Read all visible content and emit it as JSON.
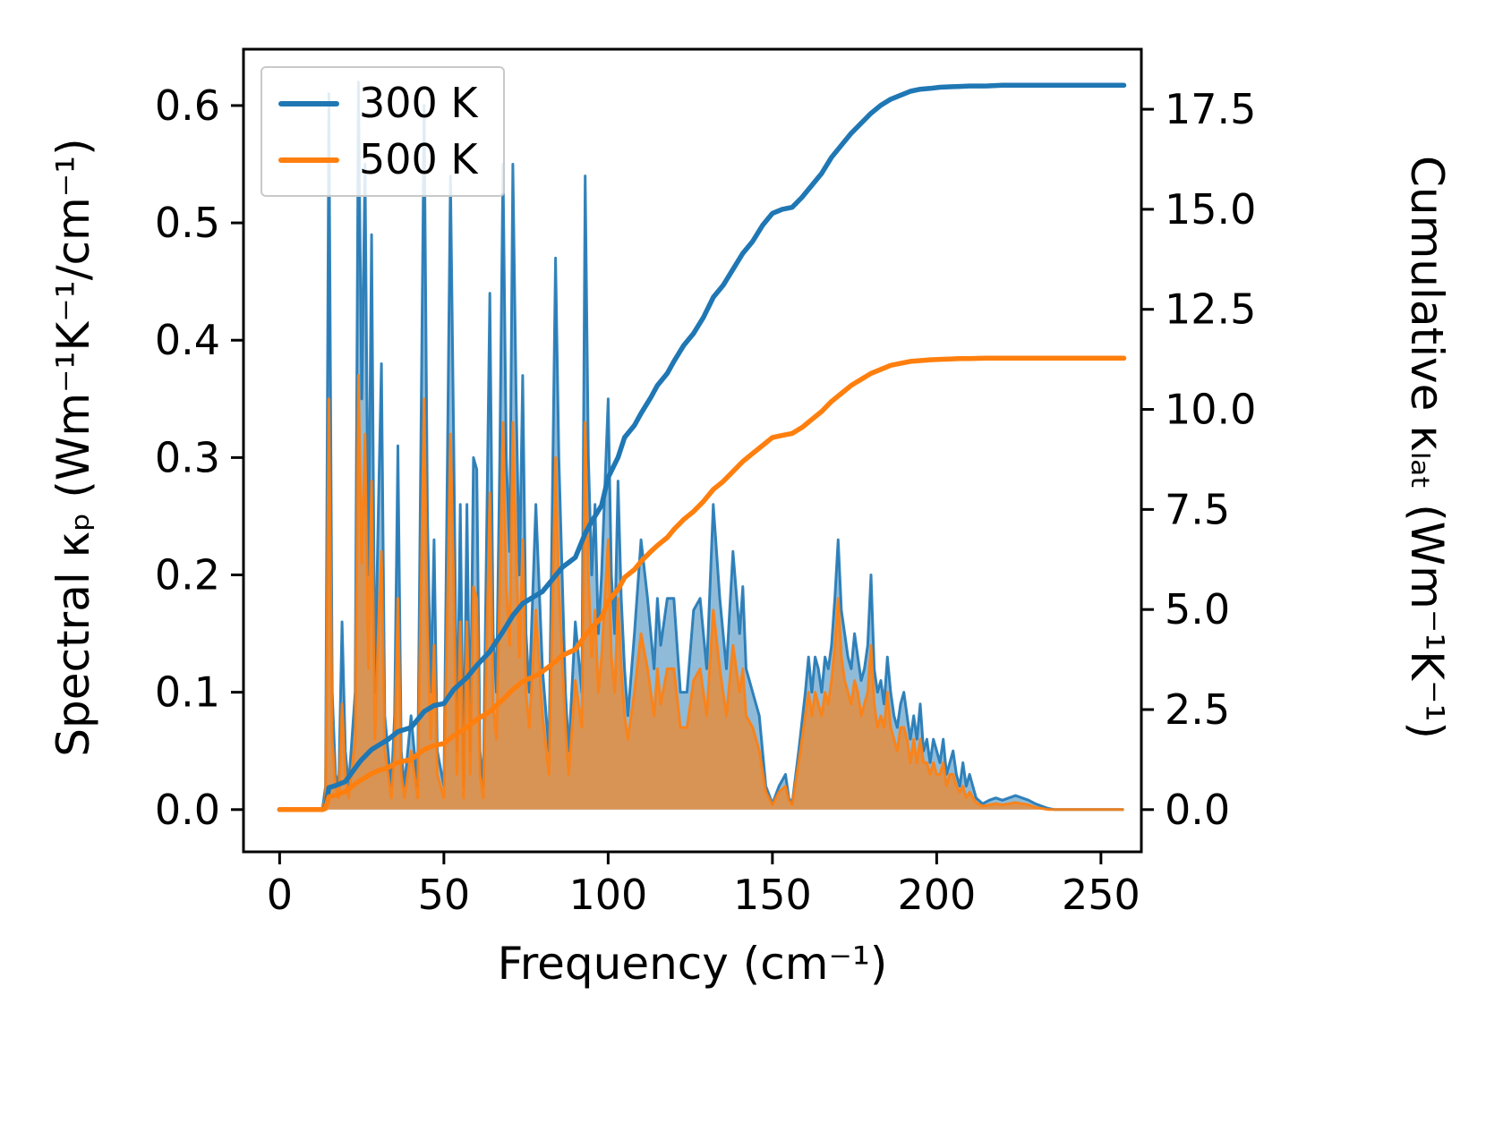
{
  "figure": {
    "background": "#ffffff"
  },
  "legend": {
    "items": [
      {
        "label": "300 K",
        "color": "#1f77b4"
      },
      {
        "label": "500 K",
        "color": "#ff7f0e"
      }
    ]
  },
  "chart_data": {
    "type": "line",
    "title": "",
    "xlabel": "Frequency (cm⁻¹)",
    "ylabel_left": "Spectral κₚ (Wm⁻¹K⁻¹/cm⁻¹)",
    "ylabel_right": "Cumulative κₗₐₜ (Wm⁻¹K⁻¹)",
    "grid": false,
    "legend_position": "upper-left",
    "xlim": [
      -11,
      262.3
    ],
    "ylim_left": [
      -0.036,
      0.648
    ],
    "ylim_right": [
      -1.055,
      19.0
    ],
    "xticks": [
      0,
      50,
      100,
      150,
      200,
      250
    ],
    "xtick_labels": [
      "0",
      "50",
      "100",
      "150",
      "200",
      "250"
    ],
    "yticks_left": [
      0.0,
      0.1,
      0.2,
      0.3,
      0.4,
      0.5,
      0.6
    ],
    "ytick_left_labels": [
      "0.0",
      "0.1",
      "0.2",
      "0.3",
      "0.4",
      "0.5",
      "0.6"
    ],
    "yticks_right": [
      0.0,
      2.5,
      5.0,
      7.5,
      10.0,
      12.5,
      15.0,
      17.5
    ],
    "ytick_right_labels": [
      "0.0",
      "2.5",
      "5.0",
      "7.5",
      "10.0",
      "12.5",
      "15.0",
      "17.5"
    ],
    "spectral": {
      "x": [
        0,
        5,
        10,
        13,
        14,
        15,
        16,
        17,
        18,
        19,
        20,
        21,
        23,
        24,
        25,
        26,
        27,
        28,
        29,
        30,
        31,
        32,
        33,
        34,
        35,
        36,
        37,
        38,
        40,
        42,
        44,
        45,
        46,
        47,
        48,
        50,
        52,
        53,
        54,
        55,
        56,
        57,
        58,
        59,
        60,
        61,
        62,
        64,
        65,
        66,
        67,
        68,
        69,
        70,
        71,
        72,
        73,
        74,
        75,
        76,
        78,
        80,
        82,
        84,
        85,
        86,
        87,
        88,
        90,
        92,
        93,
        94,
        95,
        96,
        97,
        98,
        100,
        101,
        102,
        103,
        104,
        105,
        106,
        108,
        110,
        112,
        114,
        115,
        116,
        118,
        120,
        122,
        124,
        126,
        128,
        130,
        132,
        134,
        136,
        138,
        140,
        141,
        142,
        144,
        146,
        148,
        150,
        152,
        154,
        155,
        156,
        158,
        160,
        161,
        162,
        163,
        164,
        165,
        166,
        167,
        168,
        169,
        170,
        171,
        172,
        173,
        174,
        175,
        176,
        177,
        178,
        179,
        180,
        181,
        182,
        183,
        184,
        185,
        186,
        187,
        188,
        189,
        190,
        191,
        192,
        193,
        194,
        195,
        196,
        197,
        198,
        199,
        200,
        201,
        202,
        203,
        204,
        205,
        206,
        207,
        208,
        209,
        210,
        212,
        214,
        216,
        218,
        220,
        222,
        224,
        226,
        228,
        230,
        232,
        234,
        236,
        240,
        250,
        257
      ],
      "series": [
        {
          "name": "300 K",
          "color": "#1f77b4",
          "fill_opacity": 0.5,
          "values": [
            0,
            0,
            0,
            0,
            0.02,
            0.61,
            0.1,
            0.03,
            0.02,
            0.16,
            0.05,
            0.02,
            0.1,
            0.62,
            0.35,
            0.55,
            0.2,
            0.49,
            0.1,
            0.25,
            0.38,
            0.08,
            0.05,
            0.02,
            0.08,
            0.31,
            0.05,
            0.02,
            0.08,
            0.02,
            0.6,
            0.25,
            0.1,
            0.23,
            0.05,
            0.02,
            0.54,
            0.31,
            0.05,
            0.26,
            0.02,
            0.26,
            0.05,
            0.3,
            0.29,
            0.05,
            0.02,
            0.44,
            0.15,
            0.1,
            0.3,
            0.55,
            0.3,
            0.22,
            0.55,
            0.35,
            0.2,
            0.37,
            0.15,
            0.1,
            0.26,
            0.12,
            0.05,
            0.47,
            0.3,
            0.2,
            0.1,
            0.05,
            0.16,
            0.1,
            0.54,
            0.3,
            0.2,
            0.26,
            0.15,
            0.2,
            0.35,
            0.2,
            0.15,
            0.28,
            0.18,
            0.12,
            0.08,
            0.15,
            0.23,
            0.18,
            0.12,
            0.18,
            0.14,
            0.18,
            0.18,
            0.1,
            0.1,
            0.17,
            0.18,
            0.12,
            0.26,
            0.18,
            0.12,
            0.22,
            0.15,
            0.19,
            0.12,
            0.1,
            0.08,
            0.02,
            0.005,
            0.02,
            0.03,
            0.01,
            0.005,
            0.05,
            0.1,
            0.13,
            0.1,
            0.13,
            0.12,
            0.1,
            0.13,
            0.12,
            0.14,
            0.18,
            0.23,
            0.17,
            0.15,
            0.13,
            0.12,
            0.15,
            0.13,
            0.11,
            0.12,
            0.14,
            0.2,
            0.12,
            0.1,
            0.11,
            0.09,
            0.13,
            0.1,
            0.08,
            0.07,
            0.09,
            0.1,
            0.08,
            0.06,
            0.08,
            0.06,
            0.09,
            0.05,
            0.06,
            0.04,
            0.06,
            0.05,
            0.04,
            0.06,
            0.03,
            0.04,
            0.05,
            0.03,
            0.02,
            0.04,
            0.02,
            0.03,
            0.01,
            0.005,
            0.008,
            0.01,
            0.008,
            0.01,
            0.012,
            0.01,
            0.008,
            0.005,
            0.003,
            0.001,
            0,
            0,
            0,
            0
          ]
        },
        {
          "name": "500 K",
          "color": "#ff7f0e",
          "fill_opacity": 0.65,
          "values": [
            0,
            0,
            0,
            0,
            0.01,
            0.35,
            0.06,
            0.02,
            0.01,
            0.09,
            0.03,
            0.01,
            0.06,
            0.37,
            0.21,
            0.32,
            0.12,
            0.28,
            0.06,
            0.15,
            0.22,
            0.05,
            0.03,
            0.01,
            0.05,
            0.18,
            0.03,
            0.01,
            0.05,
            0.01,
            0.35,
            0.15,
            0.06,
            0.14,
            0.03,
            0.01,
            0.32,
            0.19,
            0.03,
            0.16,
            0.01,
            0.16,
            0.03,
            0.19,
            0.18,
            0.03,
            0.01,
            0.27,
            0.09,
            0.06,
            0.19,
            0.33,
            0.19,
            0.14,
            0.33,
            0.22,
            0.13,
            0.23,
            0.1,
            0.07,
            0.17,
            0.08,
            0.03,
            0.3,
            0.19,
            0.13,
            0.07,
            0.03,
            0.11,
            0.07,
            0.33,
            0.2,
            0.13,
            0.17,
            0.1,
            0.13,
            0.23,
            0.13,
            0.1,
            0.18,
            0.12,
            0.08,
            0.06,
            0.1,
            0.15,
            0.12,
            0.08,
            0.12,
            0.09,
            0.12,
            0.12,
            0.07,
            0.07,
            0.11,
            0.12,
            0.08,
            0.17,
            0.12,
            0.08,
            0.14,
            0.1,
            0.12,
            0.08,
            0.07,
            0.05,
            0.015,
            0.004,
            0.015,
            0.02,
            0.008,
            0.004,
            0.04,
            0.08,
            0.1,
            0.08,
            0.1,
            0.09,
            0.08,
            0.1,
            0.09,
            0.11,
            0.14,
            0.18,
            0.13,
            0.11,
            0.1,
            0.09,
            0.11,
            0.1,
            0.08,
            0.09,
            0.1,
            0.14,
            0.09,
            0.07,
            0.08,
            0.07,
            0.1,
            0.07,
            0.06,
            0.05,
            0.07,
            0.07,
            0.06,
            0.04,
            0.06,
            0.04,
            0.06,
            0.04,
            0.04,
            0.03,
            0.04,
            0.03,
            0.03,
            0.04,
            0.02,
            0.03,
            0.03,
            0.02,
            0.015,
            0.02,
            0.01,
            0.015,
            0.006,
            0.003,
            0.004,
            0.005,
            0.004,
            0.005,
            0.006,
            0.005,
            0.004,
            0.002,
            0.001,
            0,
            0,
            0,
            0,
            0
          ]
        }
      ]
    },
    "cumulative": {
      "x": [
        0,
        13,
        14,
        15,
        17,
        20,
        24,
        25,
        28,
        30,
        33,
        36,
        40,
        44,
        47,
        50,
        53,
        55,
        57,
        60,
        64,
        68,
        71,
        74,
        78,
        80,
        84,
        86,
        90,
        93,
        95,
        98,
        100,
        103,
        105,
        108,
        110,
        113,
        115,
        118,
        120,
        123,
        126,
        129,
        132,
        135,
        138,
        141,
        144,
        147,
        150,
        153,
        156,
        159,
        162,
        165,
        168,
        171,
        174,
        177,
        180,
        183,
        186,
        189,
        192,
        195,
        198,
        201,
        204,
        207,
        210,
        215,
        220,
        225,
        230,
        235,
        240,
        250,
        257
      ],
      "series": [
        {
          "name": "300 K",
          "color": "#1f77b4",
          "values": [
            0,
            0,
            0.05,
            0.55,
            0.6,
            0.7,
            1.15,
            1.25,
            1.5,
            1.6,
            1.75,
            1.95,
            2.05,
            2.45,
            2.6,
            2.65,
            3.0,
            3.15,
            3.3,
            3.6,
            3.95,
            4.45,
            4.85,
            5.15,
            5.35,
            5.45,
            5.85,
            6.05,
            6.3,
            6.9,
            7.2,
            7.6,
            8.3,
            8.8,
            9.3,
            9.6,
            9.9,
            10.3,
            10.6,
            10.9,
            11.2,
            11.6,
            11.9,
            12.3,
            12.8,
            13.1,
            13.5,
            13.9,
            14.2,
            14.6,
            14.9,
            15.0,
            15.05,
            15.3,
            15.6,
            15.9,
            16.3,
            16.6,
            16.9,
            17.15,
            17.4,
            17.6,
            17.75,
            17.85,
            17.95,
            18.0,
            18.02,
            18.05,
            18.06,
            18.07,
            18.08,
            18.08,
            18.1,
            18.1,
            18.1,
            18.1,
            18.1,
            18.1,
            18.1
          ]
        },
        {
          "name": "500 K",
          "color": "#ff7f0e",
          "values": [
            0,
            0,
            0.03,
            0.32,
            0.36,
            0.45,
            0.7,
            0.75,
            0.9,
            0.97,
            1.05,
            1.18,
            1.25,
            1.5,
            1.6,
            1.65,
            1.85,
            1.95,
            2.05,
            2.25,
            2.45,
            2.75,
            3.0,
            3.2,
            3.35,
            3.45,
            3.7,
            3.85,
            4.0,
            4.35,
            4.55,
            4.8,
            5.2,
            5.5,
            5.8,
            6.0,
            6.2,
            6.45,
            6.6,
            6.8,
            7.0,
            7.25,
            7.45,
            7.7,
            8.0,
            8.2,
            8.45,
            8.7,
            8.9,
            9.1,
            9.3,
            9.35,
            9.4,
            9.55,
            9.75,
            9.95,
            10.2,
            10.4,
            10.6,
            10.75,
            10.9,
            11.0,
            11.1,
            11.15,
            11.2,
            11.22,
            11.24,
            11.25,
            11.26,
            11.27,
            11.27,
            11.28,
            11.28,
            11.28,
            11.28,
            11.28,
            11.28,
            11.28,
            11.28
          ]
        }
      ]
    }
  }
}
